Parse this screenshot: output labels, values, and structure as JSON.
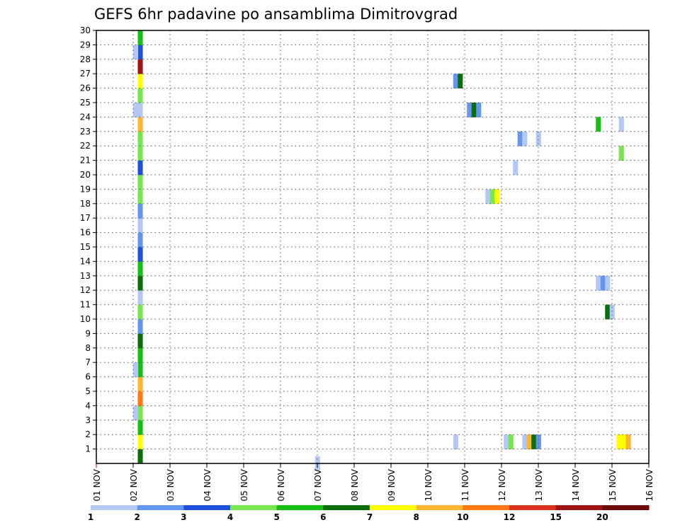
{
  "chart_data": {
    "type": "heatmap",
    "title": "GEFS 6hr padavine po ansamblima Dimitrovgrad",
    "xlabel": "",
    "ylabel": "",
    "x_ticks": [
      "01 NOV",
      "02 NOV",
      "03 NOV",
      "04 NOV",
      "05 NOV",
      "06 NOV",
      "07 NOV",
      "08 NOV",
      "09 NOV",
      "10 NOV",
      "11 NOV",
      "12 NOV",
      "13 NOV",
      "14 NOV",
      "15 NOV",
      "16 NOV"
    ],
    "y_ticks": [
      "1",
      "2",
      "3",
      "4",
      "5",
      "6",
      "7",
      "8",
      "9",
      "10",
      "11",
      "12",
      "13",
      "14",
      "15",
      "16",
      "17",
      "18",
      "19",
      "20",
      "21",
      "22",
      "23",
      "24",
      "25",
      "26",
      "27",
      "28",
      "29",
      "30"
    ],
    "xlim": [
      0,
      60
    ],
    "ylim": [
      0,
      30
    ],
    "grid": true,
    "colorbar": {
      "labels": [
        "1",
        "2",
        "3",
        "4",
        "5",
        "6",
        "7",
        "8",
        "10",
        "12",
        "15",
        "20"
      ],
      "colors": [
        "#b4c8f5",
        "#6496f0",
        "#1e50dc",
        "#78e650",
        "#14be14",
        "#0a6e0a",
        "#ffff00",
        "#ffb432",
        "#ff7814",
        "#dc321e",
        "#a01414",
        "#6e0a0a"
      ]
    },
    "cells": [
      {
        "x": 4.5,
        "y": 0,
        "c": 6
      },
      {
        "x": 4.5,
        "y": 1,
        "c": 7
      },
      {
        "x": 4.5,
        "y": 2,
        "c": 5
      },
      {
        "x": 4.5,
        "y": 3,
        "c": 4
      },
      {
        "x": 4,
        "y": 3,
        "c": 1
      },
      {
        "x": 4.5,
        "y": 4,
        "c": 9
      },
      {
        "x": 4.5,
        "y": 5,
        "c": 8
      },
      {
        "x": 4.5,
        "y": 6,
        "c": 5
      },
      {
        "x": 4,
        "y": 6,
        "c": 1
      },
      {
        "x": 4.5,
        "y": 7,
        "c": 5
      },
      {
        "x": 4.5,
        "y": 8,
        "c": 6
      },
      {
        "x": 4.5,
        "y": 9,
        "c": 2
      },
      {
        "x": 4.5,
        "y": 10,
        "c": 4
      },
      {
        "x": 4.5,
        "y": 11,
        "c": 1
      },
      {
        "x": 4.5,
        "y": 12,
        "c": 6
      },
      {
        "x": 4.5,
        "y": 13,
        "c": 5
      },
      {
        "x": 4.5,
        "y": 14,
        "c": 3
      },
      {
        "x": 4.5,
        "y": 15,
        "c": 2
      },
      {
        "x": 4.5,
        "y": 16,
        "c": 1
      },
      {
        "x": 4.5,
        "y": 17,
        "c": 2
      },
      {
        "x": 4.5,
        "y": 18,
        "c": 4
      },
      {
        "x": 4.5,
        "y": 19,
        "c": 4
      },
      {
        "x": 4.5,
        "y": 20,
        "c": 3
      },
      {
        "x": 4.5,
        "y": 21,
        "c": 4
      },
      {
        "x": 4.5,
        "y": 22,
        "c": 4
      },
      {
        "x": 4.5,
        "y": 23,
        "c": 8
      },
      {
        "x": 4.5,
        "y": 24,
        "c": 1
      },
      {
        "x": 4,
        "y": 24,
        "c": 1
      },
      {
        "x": 4.5,
        "y": 25,
        "c": 4
      },
      {
        "x": 4.5,
        "y": 26,
        "c": 7
      },
      {
        "x": 4.5,
        "y": 27,
        "c": 11
      },
      {
        "x": 4.5,
        "y": 28,
        "c": 3
      },
      {
        "x": 4,
        "y": 28,
        "c": 1
      },
      {
        "x": 4.5,
        "y": 29,
        "c": 5
      },
      {
        "x": 23.75,
        "y": -0.5,
        "c": 1
      },
      {
        "x": 38.75,
        "y": 1,
        "c": 1
      },
      {
        "x": 44.25,
        "y": 1,
        "c": 1
      },
      {
        "x": 44.75,
        "y": 1,
        "c": 4
      },
      {
        "x": 46.25,
        "y": 1,
        "c": 1
      },
      {
        "x": 46.75,
        "y": 1,
        "c": 8
      },
      {
        "x": 47.25,
        "y": 1,
        "c": 6
      },
      {
        "x": 47.75,
        "y": 1,
        "c": 2
      },
      {
        "x": 56.5,
        "y": 1,
        "c": 7
      },
      {
        "x": 57,
        "y": 1,
        "c": 7
      },
      {
        "x": 57.5,
        "y": 1,
        "c": 8
      },
      {
        "x": 38.75,
        "y": 26,
        "c": 2
      },
      {
        "x": 39.25,
        "y": 26,
        "c": 6
      },
      {
        "x": 40.25,
        "y": 24,
        "c": 2
      },
      {
        "x": 40.75,
        "y": 24,
        "c": 6
      },
      {
        "x": 41.25,
        "y": 24,
        "c": 2
      },
      {
        "x": 42.25,
        "y": 18,
        "c": 1
      },
      {
        "x": 42.75,
        "y": 18,
        "c": 4
      },
      {
        "x": 43.25,
        "y": 18,
        "c": 7
      },
      {
        "x": 45.25,
        "y": 20,
        "c": 1
      },
      {
        "x": 45.75,
        "y": 22,
        "c": 2
      },
      {
        "x": 46.25,
        "y": 22,
        "c": 1
      },
      {
        "x": 47.75,
        "y": 22,
        "c": 1
      },
      {
        "x": 54.25,
        "y": 23,
        "c": 5
      },
      {
        "x": 56.75,
        "y": 23,
        "c": 1
      },
      {
        "x": 56.75,
        "y": 21,
        "c": 4
      },
      {
        "x": 54.25,
        "y": 12,
        "c": 1
      },
      {
        "x": 54.75,
        "y": 12,
        "c": 2
      },
      {
        "x": 55.25,
        "y": 12,
        "c": 1
      },
      {
        "x": 55.25,
        "y": 10,
        "c": 6
      },
      {
        "x": 55.75,
        "y": 10,
        "c": 1
      }
    ]
  }
}
